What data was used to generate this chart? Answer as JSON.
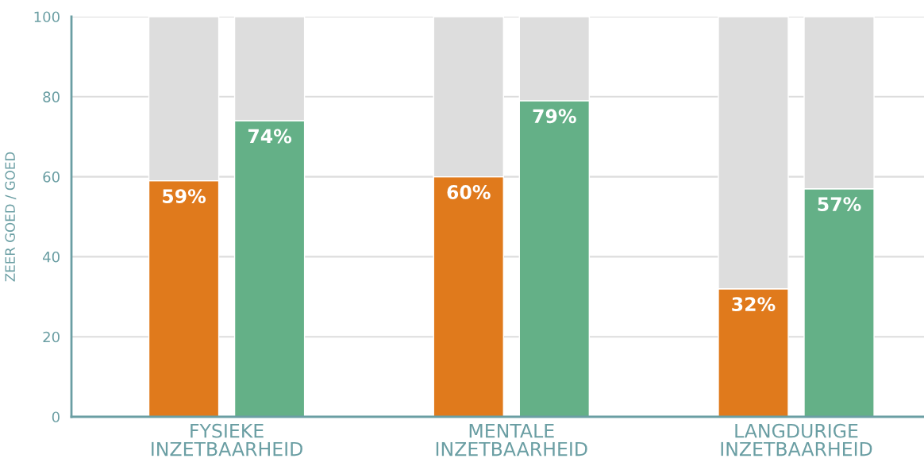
{
  "chart_data": {
    "type": "bar",
    "ylabel": "ZEER GOED / GOED",
    "categories": [
      null,
      null,
      null,
      null,
      null,
      null
    ],
    "annotations": [
      "FYSIEKE\nINZETBAARHEID",
      "MENTALE\nINZETBAARHEID",
      "LANGDURIGE\nINZETBAARHEID"
    ],
    "stacked": true,
    "series": [
      {
        "color": "#e07a1c",
        "values": [
          59,
          null,
          60,
          null,
          32,
          null
        ],
        "value_labels": [
          "59%",
          null,
          "60%",
          null,
          "32%",
          null
        ]
      },
      {
        "color": "#64b087",
        "values": [
          null,
          74,
          null,
          79,
          null,
          57
        ],
        "value_labels": [
          null,
          "74%",
          null,
          "79%",
          null,
          "57%"
        ]
      },
      {
        "color": "#dddddd",
        "values": [
          41,
          26,
          40,
          21,
          68,
          43
        ]
      }
    ],
    "ylim": [
      0,
      100
    ],
    "yticks": [
      0,
      20,
      40,
      60,
      80,
      100
    ],
    "grid": "y"
  }
}
